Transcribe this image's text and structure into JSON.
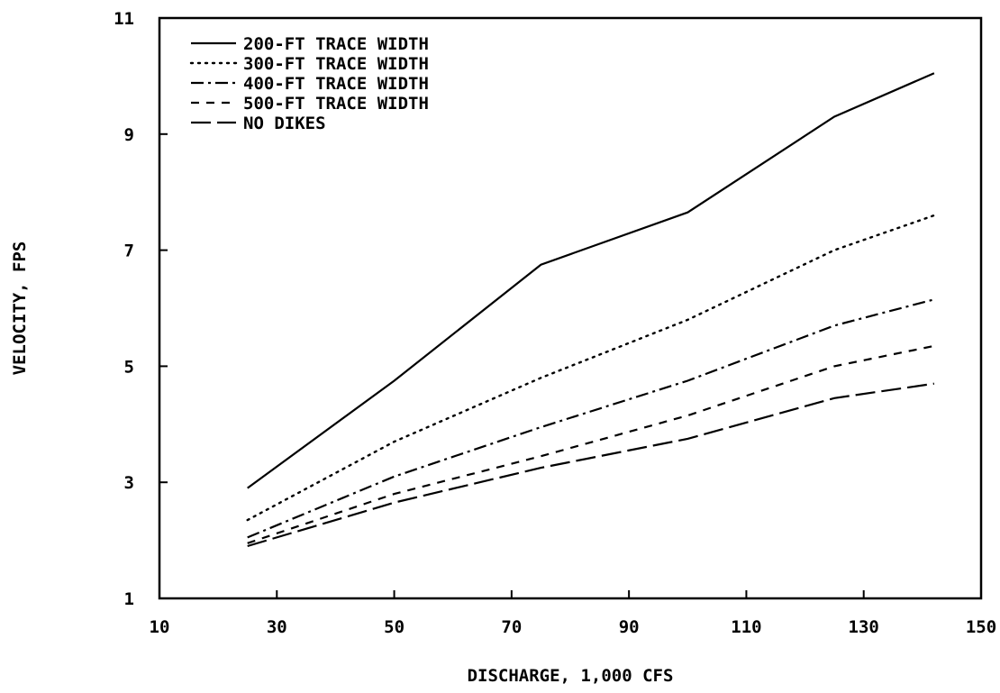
{
  "chart_data": {
    "type": "line",
    "title": "",
    "xlabel": "DISCHARGE, 1,000 CFS",
    "ylabel": "VELOCITY, FPS",
    "xlim": [
      10,
      150
    ],
    "ylim": [
      1,
      11
    ],
    "xticks": [
      "10",
      "30",
      "50",
      "70",
      "90",
      "110",
      "130",
      "150"
    ],
    "yticks": [
      "1",
      "3",
      "5",
      "7",
      "9",
      "11"
    ],
    "grid": false,
    "legend_position": "top-left",
    "x": [
      25,
      50,
      75,
      100,
      125,
      142
    ],
    "series": [
      {
        "name": "200-FT TRACE WIDTH",
        "style": "solid",
        "values": [
          2.9,
          4.75,
          6.75,
          7.65,
          9.3,
          10.05
        ]
      },
      {
        "name": "300-FT TRACE WIDTH",
        "style": "dotted",
        "values": [
          2.35,
          3.7,
          4.8,
          5.8,
          7.0,
          7.6
        ]
      },
      {
        "name": "400-FT TRACE WIDTH",
        "style": "dashdot",
        "values": [
          2.05,
          3.1,
          3.95,
          4.75,
          5.7,
          6.15
        ]
      },
      {
        "name": "500-FT TRACE WIDTH",
        "style": "shortdash",
        "values": [
          1.95,
          2.8,
          3.45,
          4.15,
          5.0,
          5.35
        ]
      },
      {
        "name": "NO DIKES",
        "style": "longdash",
        "values": [
          1.9,
          2.65,
          3.25,
          3.75,
          4.45,
          4.7
        ]
      }
    ]
  }
}
